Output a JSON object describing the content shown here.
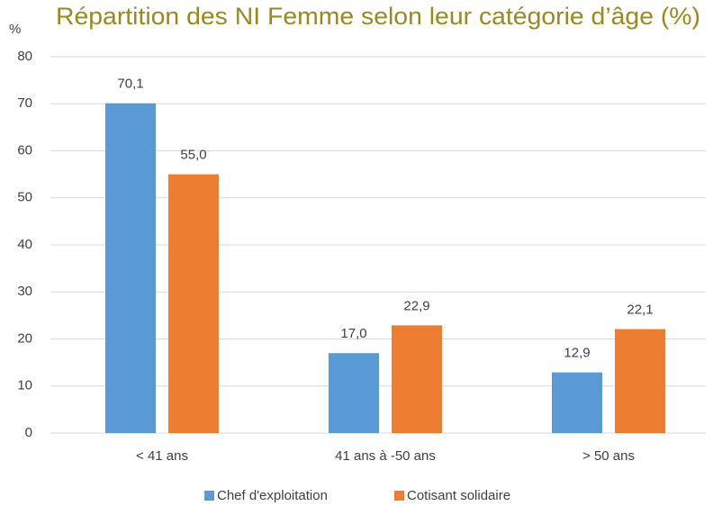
{
  "chart_data": {
    "type": "bar",
    "title": "Répartition des NI Femme selon leur catégorie d’âge (%)",
    "y_label": "%",
    "categories": [
      "< 41 ans",
      "41 ans à -50 ans",
      "> 50 ans"
    ],
    "series": [
      {
        "name": "Chef d'exploitation",
        "color": "#5b9bd5",
        "values": [
          70.1,
          17.0,
          12.9
        ],
        "value_labels": [
          "70,1",
          "17,0",
          "12,9"
        ]
      },
      {
        "name": "Cotisant solidaire",
        "color": "#ed7d31",
        "values": [
          55.0,
          22.9,
          22.1
        ],
        "value_labels": [
          "55,0",
          "22,9",
          "22,1"
        ]
      }
    ],
    "ylim": [
      0,
      80
    ],
    "yticks": [
      0,
      10,
      20,
      30,
      40,
      50,
      60,
      70,
      80
    ],
    "grid": true,
    "legend": "bottom"
  }
}
